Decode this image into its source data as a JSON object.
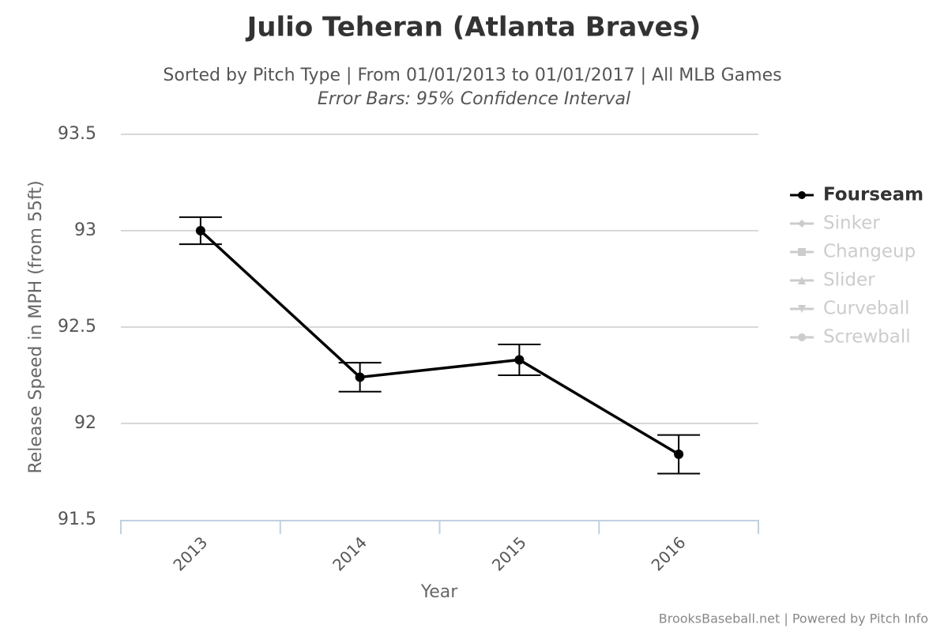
{
  "chart_data": {
    "type": "line",
    "title": "Julio Teheran (Atlanta Braves)",
    "subtitle": "Sorted by Pitch Type | From 01/01/2013 to 01/01/2017 | All MLB Games",
    "subtitle2": "Error Bars: 95% Confidence Interval",
    "xlabel": "Year",
    "ylabel": "Release Speed in MPH (from 55ft)",
    "credit": "BrooksBaseball.net | Powered by Pitch Info",
    "categories": [
      "2013",
      "2014",
      "2015",
      "2016"
    ],
    "ylim": [
      91.5,
      93.5
    ],
    "yticks": [
      91.5,
      92,
      92.5,
      93,
      93.5
    ],
    "grid": true,
    "legend": "right",
    "series": [
      {
        "name": "Fourseam",
        "color": "#000000",
        "marker": "circle",
        "visible": true,
        "values": [
          93.0,
          92.24,
          92.33,
          91.84
        ],
        "errors": [
          0.07,
          0.075,
          0.08,
          0.1
        ]
      },
      {
        "name": "Sinker",
        "color": "#cccccc",
        "marker": "diamond",
        "visible": false,
        "values": [
          null,
          null,
          null,
          null
        ]
      },
      {
        "name": "Changeup",
        "color": "#cccccc",
        "marker": "square",
        "visible": false,
        "values": [
          null,
          null,
          null,
          null
        ]
      },
      {
        "name": "Slider",
        "color": "#cccccc",
        "marker": "triangle",
        "visible": false,
        "values": [
          null,
          null,
          null,
          null
        ]
      },
      {
        "name": "Curveball",
        "color": "#cccccc",
        "marker": "triangle-down",
        "visible": false,
        "values": [
          null,
          null,
          null,
          null
        ]
      },
      {
        "name": "Screwball",
        "color": "#cccccc",
        "marker": "circle",
        "visible": false,
        "values": [
          null,
          null,
          null,
          null
        ]
      }
    ]
  }
}
